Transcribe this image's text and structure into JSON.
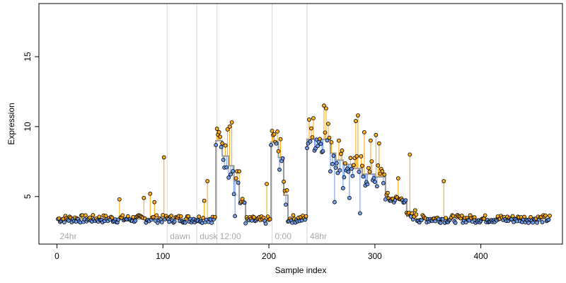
{
  "chart_data": {
    "type": "scatter",
    "xlabel": "Sample index",
    "ylabel": "Expression",
    "xlim": [
      -17,
      477
    ],
    "ylim": [
      1.6,
      18.8
    ],
    "x_ticks": [
      0,
      100,
      200,
      300,
      400
    ],
    "y_ticks": [
      5,
      10,
      15
    ],
    "regions": [
      {
        "label": "24hr",
        "x": 0
      },
      {
        "label": "dawn",
        "x": 104
      },
      {
        "label": "dusk",
        "x": 132
      },
      {
        "label": "12:00",
        "x": 151
      },
      {
        "label": "0:00",
        "x": 203
      },
      {
        "label": "48hr",
        "x": 236
      }
    ],
    "colors": {
      "above": "#ffa500",
      "below": "#6495ed",
      "fit": "#9a9a9a",
      "point_above": "#ffa500",
      "point_below": "#6495ed"
    },
    "fit_segments": [
      {
        "x0": 0,
        "x1": 150,
        "y": 3.4
      },
      {
        "x0": 150,
        "x1": 156,
        "y": 9.0
      },
      {
        "x0": 156,
        "x1": 162,
        "y": 7.9
      },
      {
        "x0": 162,
        "x1": 167,
        "y": 7.2
      },
      {
        "x0": 167,
        "x1": 172,
        "y": 6.1
      },
      {
        "x0": 172,
        "x1": 178,
        "y": 4.6
      },
      {
        "x0": 178,
        "x1": 202,
        "y": 3.3
      },
      {
        "x0": 202,
        "x1": 209,
        "y": 8.9
      },
      {
        "x0": 209,
        "x1": 214,
        "y": 7.8
      },
      {
        "x0": 214,
        "x1": 218,
        "y": 5.1
      },
      {
        "x0": 218,
        "x1": 236,
        "y": 3.4
      },
      {
        "x0": 236,
        "x1": 258,
        "y": 9.1
      },
      {
        "x0": 258,
        "x1": 263,
        "y": 8.1
      },
      {
        "x0": 263,
        "x1": 270,
        "y": 7.6
      },
      {
        "x0": 270,
        "x1": 278,
        "y": 7.3
      },
      {
        "x0": 278,
        "x1": 288,
        "y": 7.0
      },
      {
        "x0": 288,
        "x1": 300,
        "y": 6.6
      },
      {
        "x0": 300,
        "x1": 310,
        "y": 6.4
      },
      {
        "x0": 310,
        "x1": 313,
        "y": 5.0
      },
      {
        "x0": 313,
        "x1": 330,
        "y": 4.8
      },
      {
        "x0": 330,
        "x1": 336,
        "y": 3.6
      },
      {
        "x0": 336,
        "x1": 465,
        "y": 3.4
      }
    ],
    "seed": 7,
    "noise": 0.28,
    "outliers": [
      {
        "x": 59,
        "y": 4.8
      },
      {
        "x": 82,
        "y": 4.9
      },
      {
        "x": 88,
        "y": 5.2
      },
      {
        "x": 92,
        "y": 4.6
      },
      {
        "x": 101,
        "y": 7.8
      },
      {
        "x": 139,
        "y": 4.7
      },
      {
        "x": 142,
        "y": 6.1
      },
      {
        "x": 153,
        "y": 9.6
      },
      {
        "x": 156,
        "y": 8.8
      },
      {
        "x": 161,
        "y": 9.8
      },
      {
        "x": 163,
        "y": 10.0
      },
      {
        "x": 165,
        "y": 10.3
      },
      {
        "x": 168,
        "y": 3.6
      },
      {
        "x": 170,
        "y": 6.8
      },
      {
        "x": 172,
        "y": 6.8
      },
      {
        "x": 198,
        "y": 5.9
      },
      {
        "x": 203,
        "y": 9.7
      },
      {
        "x": 211,
        "y": 9.1
      },
      {
        "x": 238,
        "y": 10.5
      },
      {
        "x": 242,
        "y": 10.6
      },
      {
        "x": 252,
        "y": 11.5
      },
      {
        "x": 254,
        "y": 11.3
      },
      {
        "x": 256,
        "y": 10.2
      },
      {
        "x": 258,
        "y": 6.8
      },
      {
        "x": 262,
        "y": 4.6
      },
      {
        "x": 266,
        "y": 9.0
      },
      {
        "x": 270,
        "y": 5.6
      },
      {
        "x": 276,
        "y": 4.9
      },
      {
        "x": 282,
        "y": 10.4
      },
      {
        "x": 284,
        "y": 10.8
      },
      {
        "x": 286,
        "y": 3.8
      },
      {
        "x": 290,
        "y": 9.6
      },
      {
        "x": 296,
        "y": 9.0
      },
      {
        "x": 301,
        "y": 9.4
      },
      {
        "x": 304,
        "y": 8.8
      },
      {
        "x": 322,
        "y": 6.3
      },
      {
        "x": 333,
        "y": 8.0
      },
      {
        "x": 365,
        "y": 6.1
      }
    ]
  }
}
